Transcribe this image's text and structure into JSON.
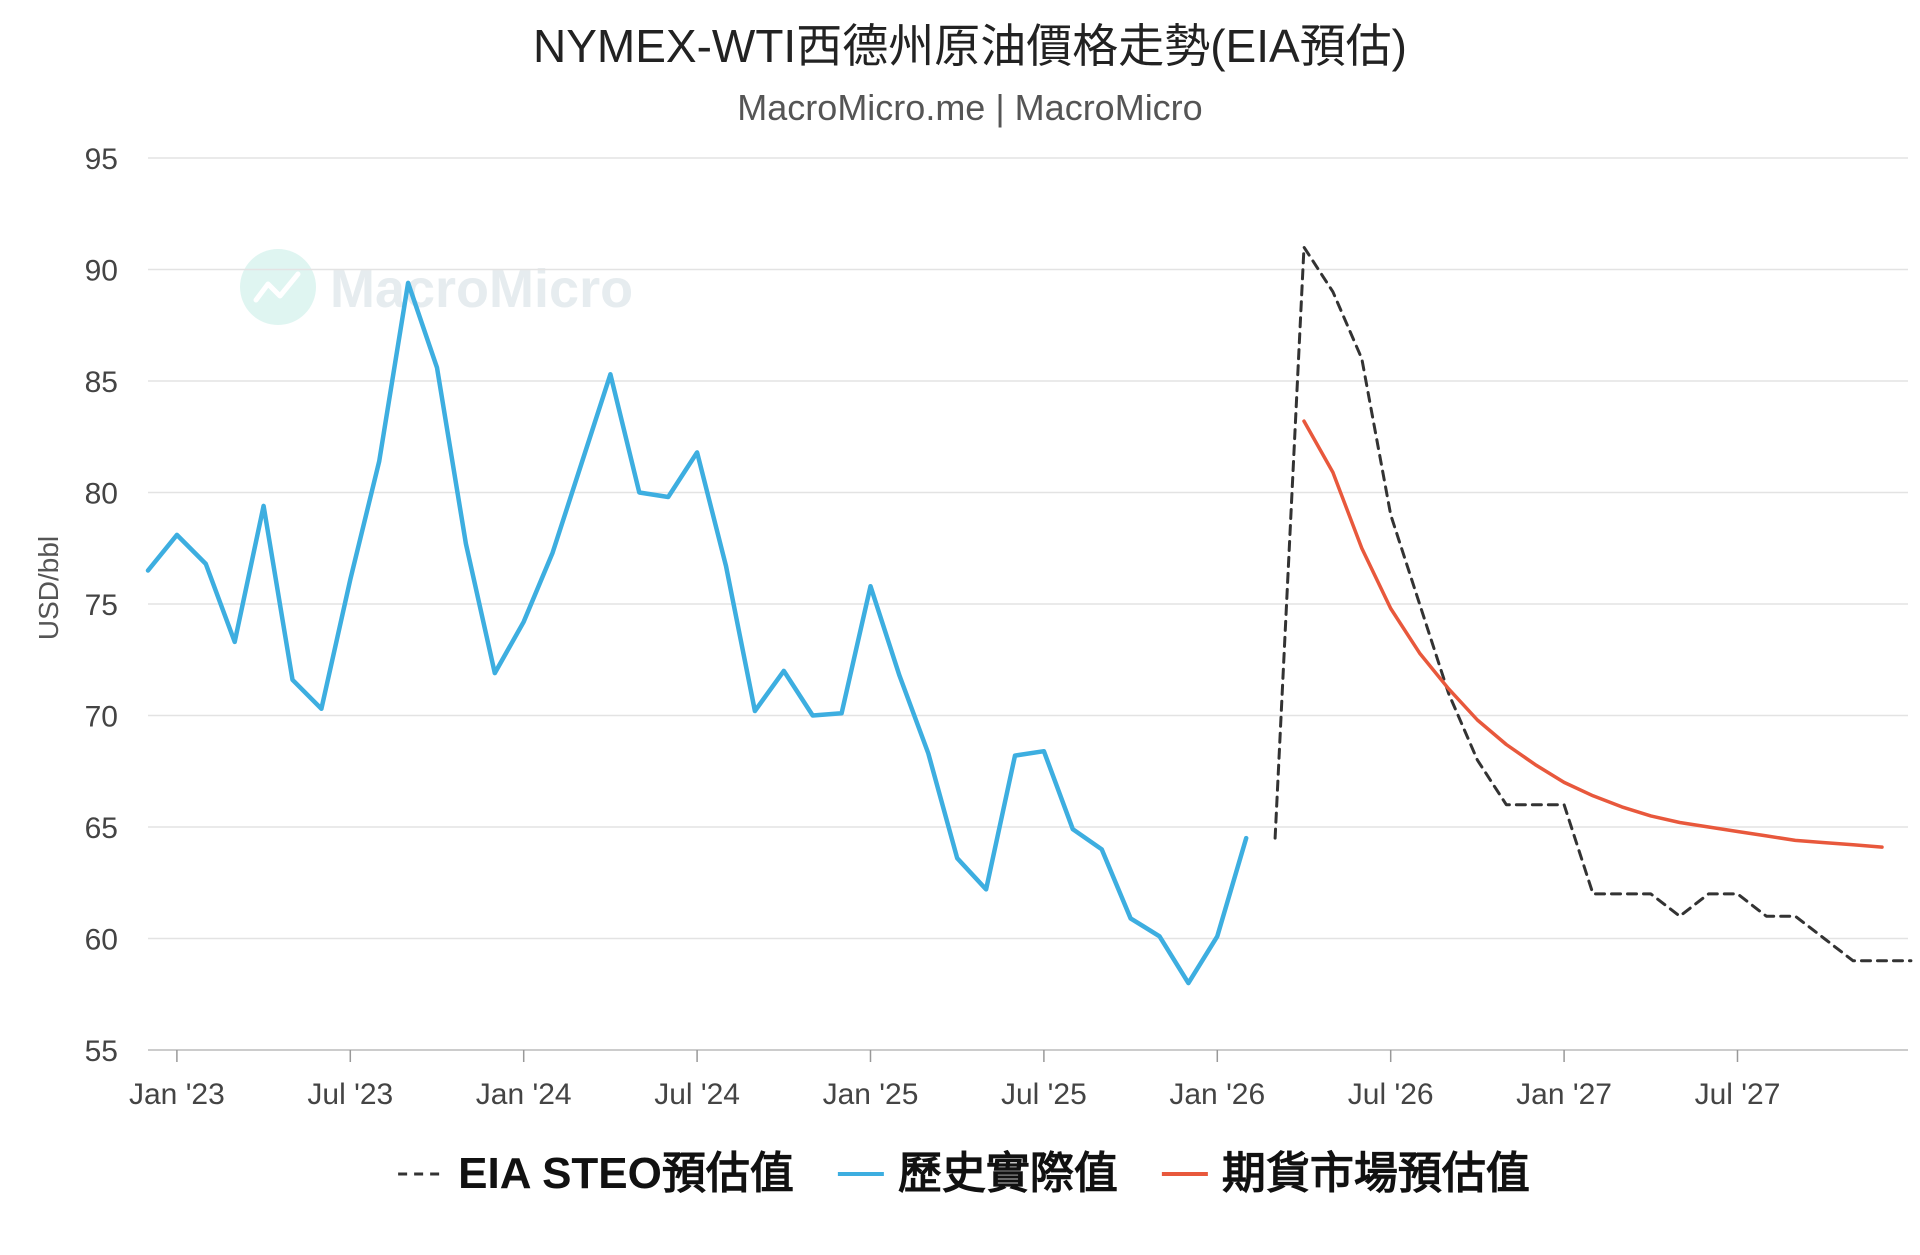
{
  "chart_data": {
    "type": "line",
    "title": "NYMEX-WTI西德州原油價格走勢(EIA預估)",
    "subtitle": "MacroMicro.me | MacroMicro",
    "watermark": "MacroMicro",
    "ylabel": "USD/bbl",
    "xlabel": "",
    "ylim": [
      55,
      95
    ],
    "yticks": [
      55,
      60,
      65,
      70,
      75,
      80,
      85,
      90,
      95
    ],
    "x_range": [
      "2022-12",
      "2027-12"
    ],
    "xticks": [
      {
        "date": "2023-01",
        "label": "Jan '23"
      },
      {
        "date": "2023-07",
        "label": "Jul '23"
      },
      {
        "date": "2024-01",
        "label": "Jan '24"
      },
      {
        "date": "2024-07",
        "label": "Jul '24"
      },
      {
        "date": "2025-01",
        "label": "Jan '25"
      },
      {
        "date": "2025-07",
        "label": "Jul '25"
      },
      {
        "date": "2026-01",
        "label": "Jan '26"
      },
      {
        "date": "2026-07",
        "label": "Jul '26"
      },
      {
        "date": "2027-01",
        "label": "Jan '27"
      },
      {
        "date": "2027-07",
        "label": "Jul '27"
      }
    ],
    "grid": true,
    "legend_position": "bottom",
    "series": [
      {
        "name": "EIA STEO預估值",
        "color": "#333333",
        "style": "dashed",
        "points": [
          [
            "2026-03",
            64.5
          ],
          [
            "2026-04",
            91.0
          ],
          [
            "2026-05",
            89.0
          ],
          [
            "2026-06",
            86.0
          ],
          [
            "2026-07",
            79.0
          ],
          [
            "2026-08",
            75.0
          ],
          [
            "2026-09",
            71.0
          ],
          [
            "2026-10",
            68.0
          ],
          [
            "2026-11",
            66.0
          ],
          [
            "2026-12",
            66.0
          ],
          [
            "2027-01",
            66.0
          ],
          [
            "2027-02",
            62.0
          ],
          [
            "2027-03",
            62.0
          ],
          [
            "2027-04",
            62.0
          ],
          [
            "2027-05",
            61.0
          ],
          [
            "2027-06",
            62.0
          ],
          [
            "2027-07",
            62.0
          ],
          [
            "2027-08",
            61.0
          ],
          [
            "2027-09",
            61.0
          ],
          [
            "2027-10",
            60.0
          ],
          [
            "2027-11",
            59.0
          ],
          [
            "2027-12",
            59.0
          ],
          [
            "2028-01",
            59.0
          ]
        ]
      },
      {
        "name": "歷史實際值",
        "color": "#3daee0",
        "style": "solid",
        "points": [
          [
            "2022-12",
            76.5
          ],
          [
            "2023-01",
            78.1
          ],
          [
            "2023-02",
            76.8
          ],
          [
            "2023-03",
            73.3
          ],
          [
            "2023-04",
            79.4
          ],
          [
            "2023-05",
            71.6
          ],
          [
            "2023-06",
            70.3
          ],
          [
            "2023-07",
            76.1
          ],
          [
            "2023-08",
            81.4
          ],
          [
            "2023-09",
            89.4
          ],
          [
            "2023-10",
            85.6
          ],
          [
            "2023-11",
            77.7
          ],
          [
            "2023-12",
            71.9
          ],
          [
            "2024-01",
            74.2
          ],
          [
            "2024-02",
            77.3
          ],
          [
            "2024-03",
            81.3
          ],
          [
            "2024-04",
            85.3
          ],
          [
            "2024-05",
            80.0
          ],
          [
            "2024-06",
            79.8
          ],
          [
            "2024-07",
            81.8
          ],
          [
            "2024-08",
            76.7
          ],
          [
            "2024-09",
            70.2
          ],
          [
            "2024-10",
            72.0
          ],
          [
            "2024-11",
            70.0
          ],
          [
            "2024-12",
            70.1
          ],
          [
            "2025-01",
            75.8
          ],
          [
            "2025-02",
            71.8
          ],
          [
            "2025-03",
            68.3
          ],
          [
            "2025-04",
            63.6
          ],
          [
            "2025-05",
            62.2
          ],
          [
            "2025-06",
            68.2
          ],
          [
            "2025-07",
            68.4
          ],
          [
            "2025-08",
            64.9
          ],
          [
            "2025-09",
            64.0
          ],
          [
            "2025-10",
            60.9
          ],
          [
            "2025-11",
            60.1
          ],
          [
            "2025-12",
            58.0
          ],
          [
            "2026-01",
            60.1
          ],
          [
            "2026-02",
            64.5
          ]
        ]
      },
      {
        "name": "期貨市場預估值",
        "color": "#e8583c",
        "style": "solid",
        "points": [
          [
            "2026-04",
            83.2
          ],
          [
            "2026-05",
            80.9
          ],
          [
            "2026-06",
            77.5
          ],
          [
            "2026-07",
            74.8
          ],
          [
            "2026-08",
            72.8
          ],
          [
            "2026-09",
            71.2
          ],
          [
            "2026-10",
            69.8
          ],
          [
            "2026-11",
            68.7
          ],
          [
            "2026-12",
            67.8
          ],
          [
            "2027-01",
            67.0
          ],
          [
            "2027-02",
            66.4
          ],
          [
            "2027-03",
            65.9
          ],
          [
            "2027-04",
            65.5
          ],
          [
            "2027-05",
            65.2
          ],
          [
            "2027-06",
            65.0
          ],
          [
            "2027-07",
            64.8
          ],
          [
            "2027-08",
            64.6
          ],
          [
            "2027-09",
            64.4
          ],
          [
            "2027-10",
            64.3
          ],
          [
            "2027-11",
            64.2
          ],
          [
            "2027-12",
            64.1
          ]
        ]
      }
    ]
  }
}
